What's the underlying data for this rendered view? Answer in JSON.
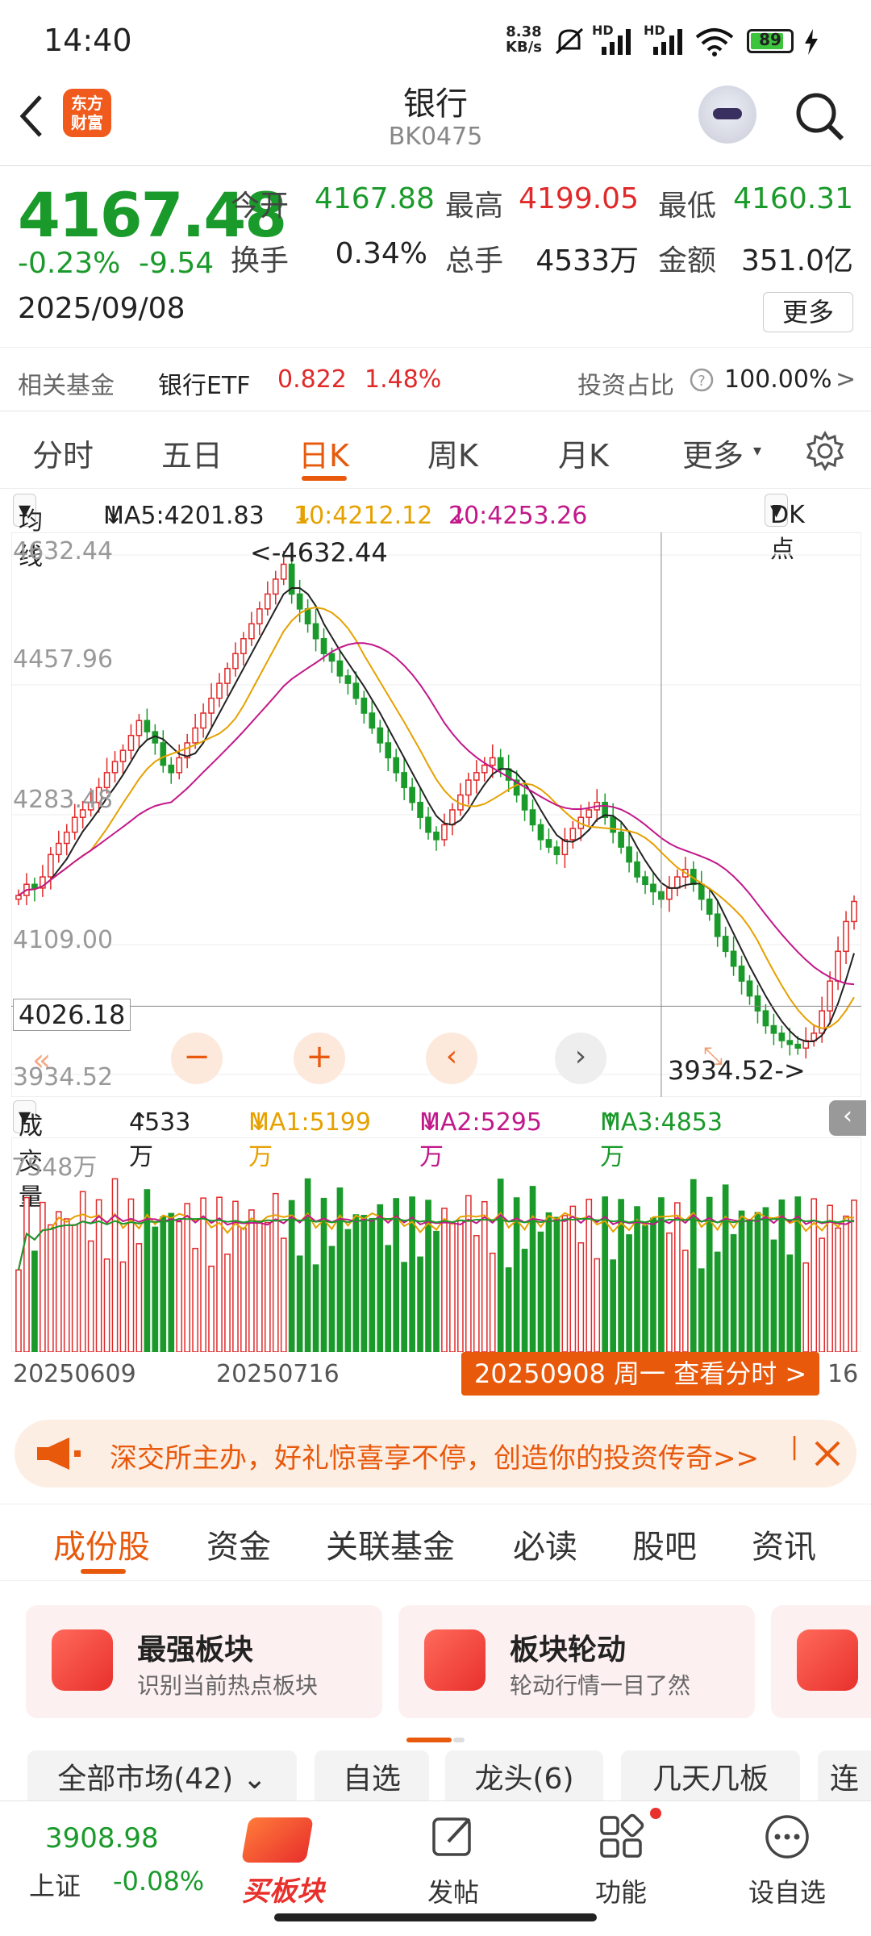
{
  "status": {
    "time": "14:40",
    "speed": "8.38",
    "speed_unit": "KB/s",
    "battery": "89",
    "hd1": "HD",
    "hd2": "HD"
  },
  "header": {
    "title": "银行",
    "code": "BK0475",
    "logo_line1": "东方",
    "logo_line2": "财富"
  },
  "quote": {
    "price": "4167.48",
    "pct": "-0.23%",
    "chg": "-9.54",
    "date": "2025/09/08",
    "stats": [
      {
        "label": "今开",
        "value": "4167.88",
        "color": "#1a9a2a"
      },
      {
        "label": "最高",
        "value": "4199.05",
        "color": "#e02a2a"
      },
      {
        "label": "最低",
        "value": "4160.31",
        "color": "#1a9a2a"
      },
      {
        "label": "换手",
        "value": "0.34%",
        "color": "#222"
      },
      {
        "label": "总手",
        "value": "4533万",
        "color": "#222"
      },
      {
        "label": "金额",
        "value": "351.0亿",
        "color": "#222"
      }
    ],
    "more": "更多"
  },
  "fund": {
    "label": "相关基金",
    "name": "银行ETF",
    "price": "0.822",
    "pct": "1.48%",
    "ratio_label": "投资占比",
    "ratio": "100.00%",
    "arrow": ">"
  },
  "periods": [
    "分时",
    "五日",
    "日K",
    "周K",
    "月K",
    "更多"
  ],
  "ma": {
    "dropdown": "均线",
    "ma5": "MA5:4201.83",
    "ma10": "10:4212.12",
    "ma20": "20:4253.26",
    "dk": "DK点",
    "arrow": "↓"
  },
  "chart_data": {
    "type": "candlestick",
    "yticks": [
      "4632.44",
      "4457.96",
      "4283.48",
      "4109.00",
      "3934.52"
    ],
    "ylim": [
      3934.52,
      4632.44
    ],
    "high_label": "<-4632.44",
    "low_label": "3934.52->",
    "crosshair_value": "4026.18",
    "closes": [
      4175,
      4190,
      4185,
      4200,
      4230,
      4245,
      4260,
      4280,
      4290,
      4300,
      4320,
      4340,
      4355,
      4370,
      4390,
      4410,
      4395,
      4380,
      4350,
      4340,
      4360,
      4380,
      4400,
      4420,
      4440,
      4460,
      4480,
      4500,
      4520,
      4540,
      4560,
      4580,
      4600,
      4620,
      4580,
      4560,
      4540,
      4520,
      4500,
      4490,
      4470,
      4460,
      4440,
      4420,
      4400,
      4380,
      4360,
      4340,
      4320,
      4300,
      4280,
      4260,
      4250,
      4270,
      4290,
      4310,
      4330,
      4340,
      4350,
      4360,
      4345,
      4330,
      4310,
      4290,
      4270,
      4250,
      4240,
      4230,
      4250,
      4265,
      4280,
      4290,
      4300,
      4280,
      4260,
      4240,
      4220,
      4200,
      4190,
      4180,
      4170,
      4185,
      4200,
      4210,
      4190,
      4170,
      4150,
      4120,
      4100,
      4080,
      4060,
      4040,
      4020,
      4000,
      3990,
      3980,
      3975,
      3970,
      3980,
      3990,
      4020,
      4060,
      4100,
      4140,
      4167
    ]
  },
  "volume": {
    "label": "成交量",
    "current": "4533万",
    "ma1": "MA1:5199万",
    "ma2": "MA2:5295万",
    "ma3": "MA3:4853万",
    "scale": "7548万",
    "up": "↑",
    "down": "↓"
  },
  "dates": {
    "d1": "20250609",
    "d2": "20250716",
    "pill": "20250908 周一 查看分时 >",
    "d3": "16"
  },
  "banner": {
    "text": "深交所主办，好礼惊喜享不停，创造你的投资传奇>>"
  },
  "tabs": [
    "成份股",
    "资金",
    "关联基金",
    "必读",
    "股吧",
    "资讯"
  ],
  "cards": [
    {
      "title": "最强板块",
      "sub": "识别当前热点板块"
    },
    {
      "title": "板块轮动",
      "sub": "轮动行情一目了然"
    }
  ],
  "filters": [
    "全部市场(42)",
    "自选",
    "龙头(6)",
    "几天几板",
    "连"
  ],
  "nav": {
    "index_value": "3908.98",
    "index_name": "上证",
    "index_pct": "-0.08%",
    "buy": "买板块",
    "post": "发帖",
    "func": "功能",
    "watch": "设自选"
  }
}
